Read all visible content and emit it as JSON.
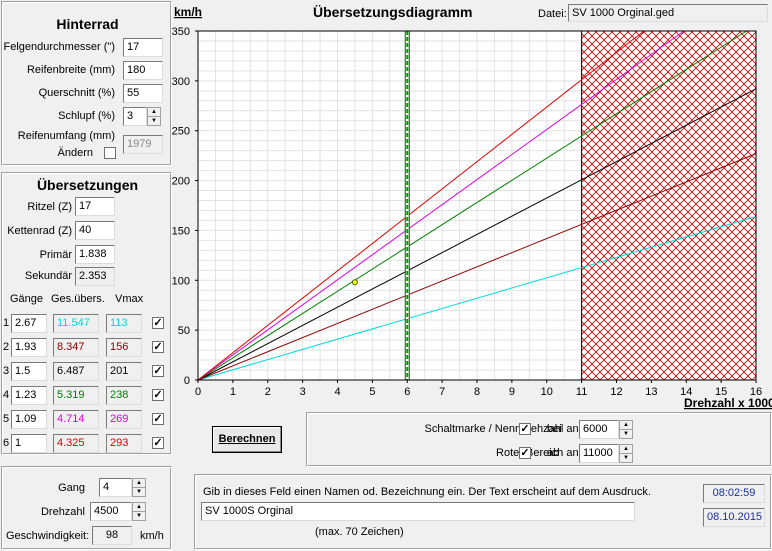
{
  "hinterrad": {
    "title": "Hinterrad",
    "fields": [
      {
        "label": "Felgendurchmesser (\")",
        "value": "17"
      },
      {
        "label": "Reifenbreite (mm)",
        "value": "180"
      },
      {
        "label": "Querschnitt (%)",
        "value": "55"
      },
      {
        "label": "Schlupf (%)",
        "value": "3"
      }
    ],
    "umfang_label": "Reifenumfang (mm)",
    "aendern_label": "Ändern",
    "umfang_value": "1979"
  },
  "uebersetzungen": {
    "title": "Übersetzungen",
    "ritzel_label": "Ritzel (Z)",
    "ritzel_value": "17",
    "kettenrad_label": "Kettenrad (Z)",
    "kettenrad_value": "40",
    "primaer_label": "Primär",
    "primaer_value": "1.838",
    "sekundaer_label": "Sekundär",
    "sekundaer_value": "2.353",
    "col_gaenge": "Gänge",
    "col_ges": "Ges.übers.",
    "col_vmax": "Vmax",
    "gears": [
      {
        "num": "1",
        "ratio": "2.67",
        "total": "11.547",
        "vmax": "113",
        "color": "#00d8d8"
      },
      {
        "num": "2",
        "ratio": "1.93",
        "total": "8.347",
        "vmax": "156",
        "color": "#8b0000"
      },
      {
        "num": "3",
        "ratio": "1.5",
        "total": "6.487",
        "vmax": "201",
        "color": "#000000"
      },
      {
        "num": "4",
        "ratio": "1.23",
        "total": "5.319",
        "vmax": "238",
        "color": "#008000"
      },
      {
        "num": "5",
        "ratio": "1.09",
        "total": "4.714",
        "vmax": "269",
        "color": "#e000e0"
      },
      {
        "num": "6",
        "ratio": "1",
        "total": "4.325",
        "vmax": "293",
        "color": "#e00000"
      }
    ]
  },
  "gang_panel": {
    "gang_label": "Gang",
    "gang_value": "4",
    "drehzahl_label": "Drehzahl",
    "drehzahl_value": "4500",
    "geschw_label": "Geschwindigkeit:",
    "geschw_value": "98",
    "geschw_unit": "km/h"
  },
  "header": {
    "title": "Übersetzungsdiagramm",
    "datei_label": "Datei:",
    "datei_value": "SV 1000 Orginal.ged"
  },
  "chart_data": {
    "type": "line",
    "ylabel": "km/h",
    "xlabel": "Drehzahl x 1000",
    "xlim": [
      0,
      16
    ],
    "ylim": [
      0,
      350
    ],
    "xticks": [
      "0",
      "1",
      "2",
      "3",
      "4",
      "5",
      "6",
      "7",
      "8",
      "9",
      "10",
      "11",
      "12",
      "13",
      "14",
      "15",
      "16"
    ],
    "yticks": [
      "0",
      "50",
      "100",
      "150",
      "200",
      "250",
      "300",
      "350"
    ],
    "series": [
      {
        "values": [
          [
            0,
            0
          ],
          [
            16,
            164
          ]
        ],
        "color": "#00d8d8"
      },
      {
        "values": [
          [
            0,
            0
          ],
          [
            16,
            227
          ]
        ],
        "color": "#8b0000"
      },
      {
        "values": [
          [
            0,
            0
          ],
          [
            16,
            292
          ]
        ],
        "color": "#000000"
      },
      {
        "values": [
          [
            0,
            0
          ],
          [
            16,
            356
          ]
        ],
        "color": "#008000"
      },
      {
        "values": [
          [
            0,
            0
          ],
          [
            16,
            402
          ]
        ],
        "color": "#e000e0"
      },
      {
        "values": [
          [
            0,
            0
          ],
          [
            16,
            438
          ]
        ],
        "color": "#e00000"
      }
    ],
    "shift_marker_rpm": 6,
    "red_zone_start": 11,
    "current_point": [
      4.5,
      98
    ],
    "grid": true
  },
  "controls": {
    "berechnen_label": "Berechnen",
    "schaltmarke_label": "Schaltmarke / Nenndrehzahl anzeigen",
    "bei_label": "bei",
    "bei_value": "6000",
    "roter_label": "Roter Bereich anzeigen",
    "ab_label": "ab",
    "ab_value": "11000"
  },
  "note": {
    "hint": "Gib in dieses Feld einen Namen od. Bezeichnung ein. Der Text erscheint auf dem Ausdruck.",
    "value": "SV 1000S Orginal",
    "max_hint": "(max. 70 Zeichen)"
  },
  "clock": {
    "time": "08:02:59",
    "date": "08.10.2015"
  },
  "checkmark": "✓",
  "spin_up": "▲",
  "spin_down": "▼"
}
